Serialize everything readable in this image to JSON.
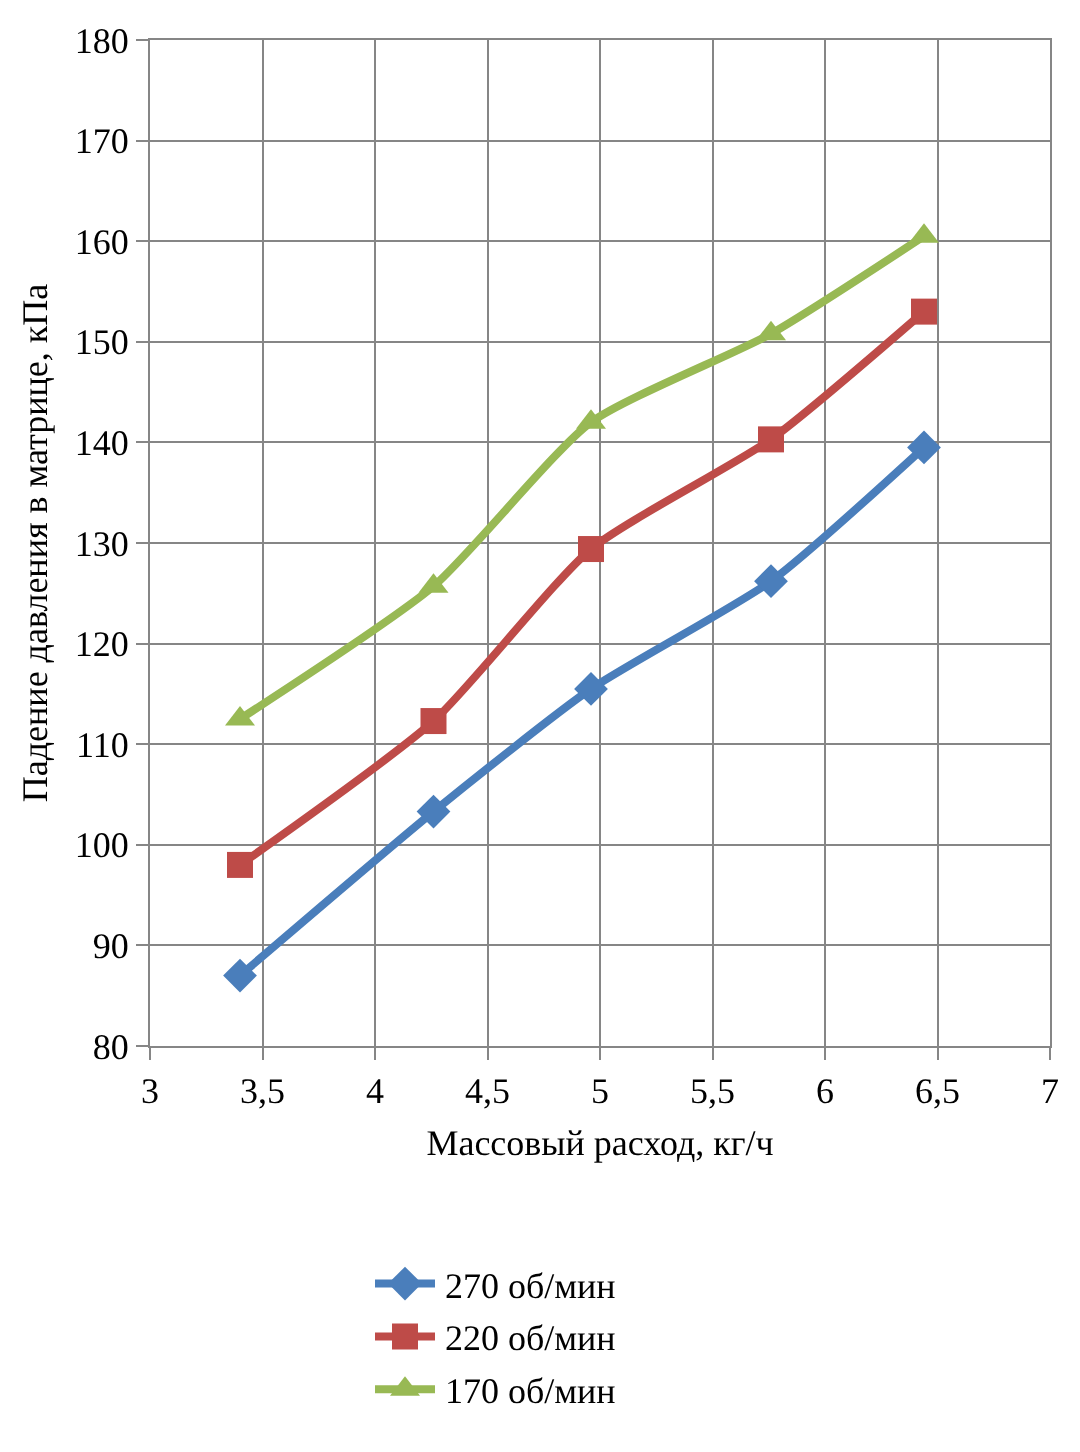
{
  "chart_data": {
    "type": "line",
    "xlabel": "Массовый расход, кг/ч",
    "ylabel": "Падение давления в матрице, кПа",
    "x": [
      3.4,
      4.26,
      4.96,
      5.76,
      6.44
    ],
    "series": [
      {
        "name": "270 об/мин",
        "color": "#4a7ebb",
        "marker": "diamond",
        "values": [
          87,
          103.3,
          115.5,
          126.2,
          139.5
        ]
      },
      {
        "name": "220 об/мин",
        "color": "#be4b48",
        "marker": "square",
        "values": [
          98,
          112.3,
          129.4,
          140.3,
          153
        ]
      },
      {
        "name": "170 об/мин",
        "color": "#98b954",
        "marker": "triangle",
        "values": [
          112.5,
          125.7,
          142,
          150.8,
          160.5
        ]
      }
    ],
    "xlim": [
      3,
      7
    ],
    "xticks": [
      3,
      {
        "value": 3.5,
        "label": "3,5"
      },
      4,
      {
        "value": 4.5,
        "label": "4,5"
      },
      5,
      {
        "value": 5.5,
        "label": "5,5"
      },
      6,
      {
        "value": 6.5,
        "label": "6,5"
      },
      7
    ],
    "ylim": [
      80,
      180
    ],
    "yticks": [
      80,
      90,
      100,
      110,
      120,
      130,
      140,
      150,
      160,
      170,
      180
    ],
    "grid": true,
    "legend": "bottom",
    "line_style": "solid"
  }
}
